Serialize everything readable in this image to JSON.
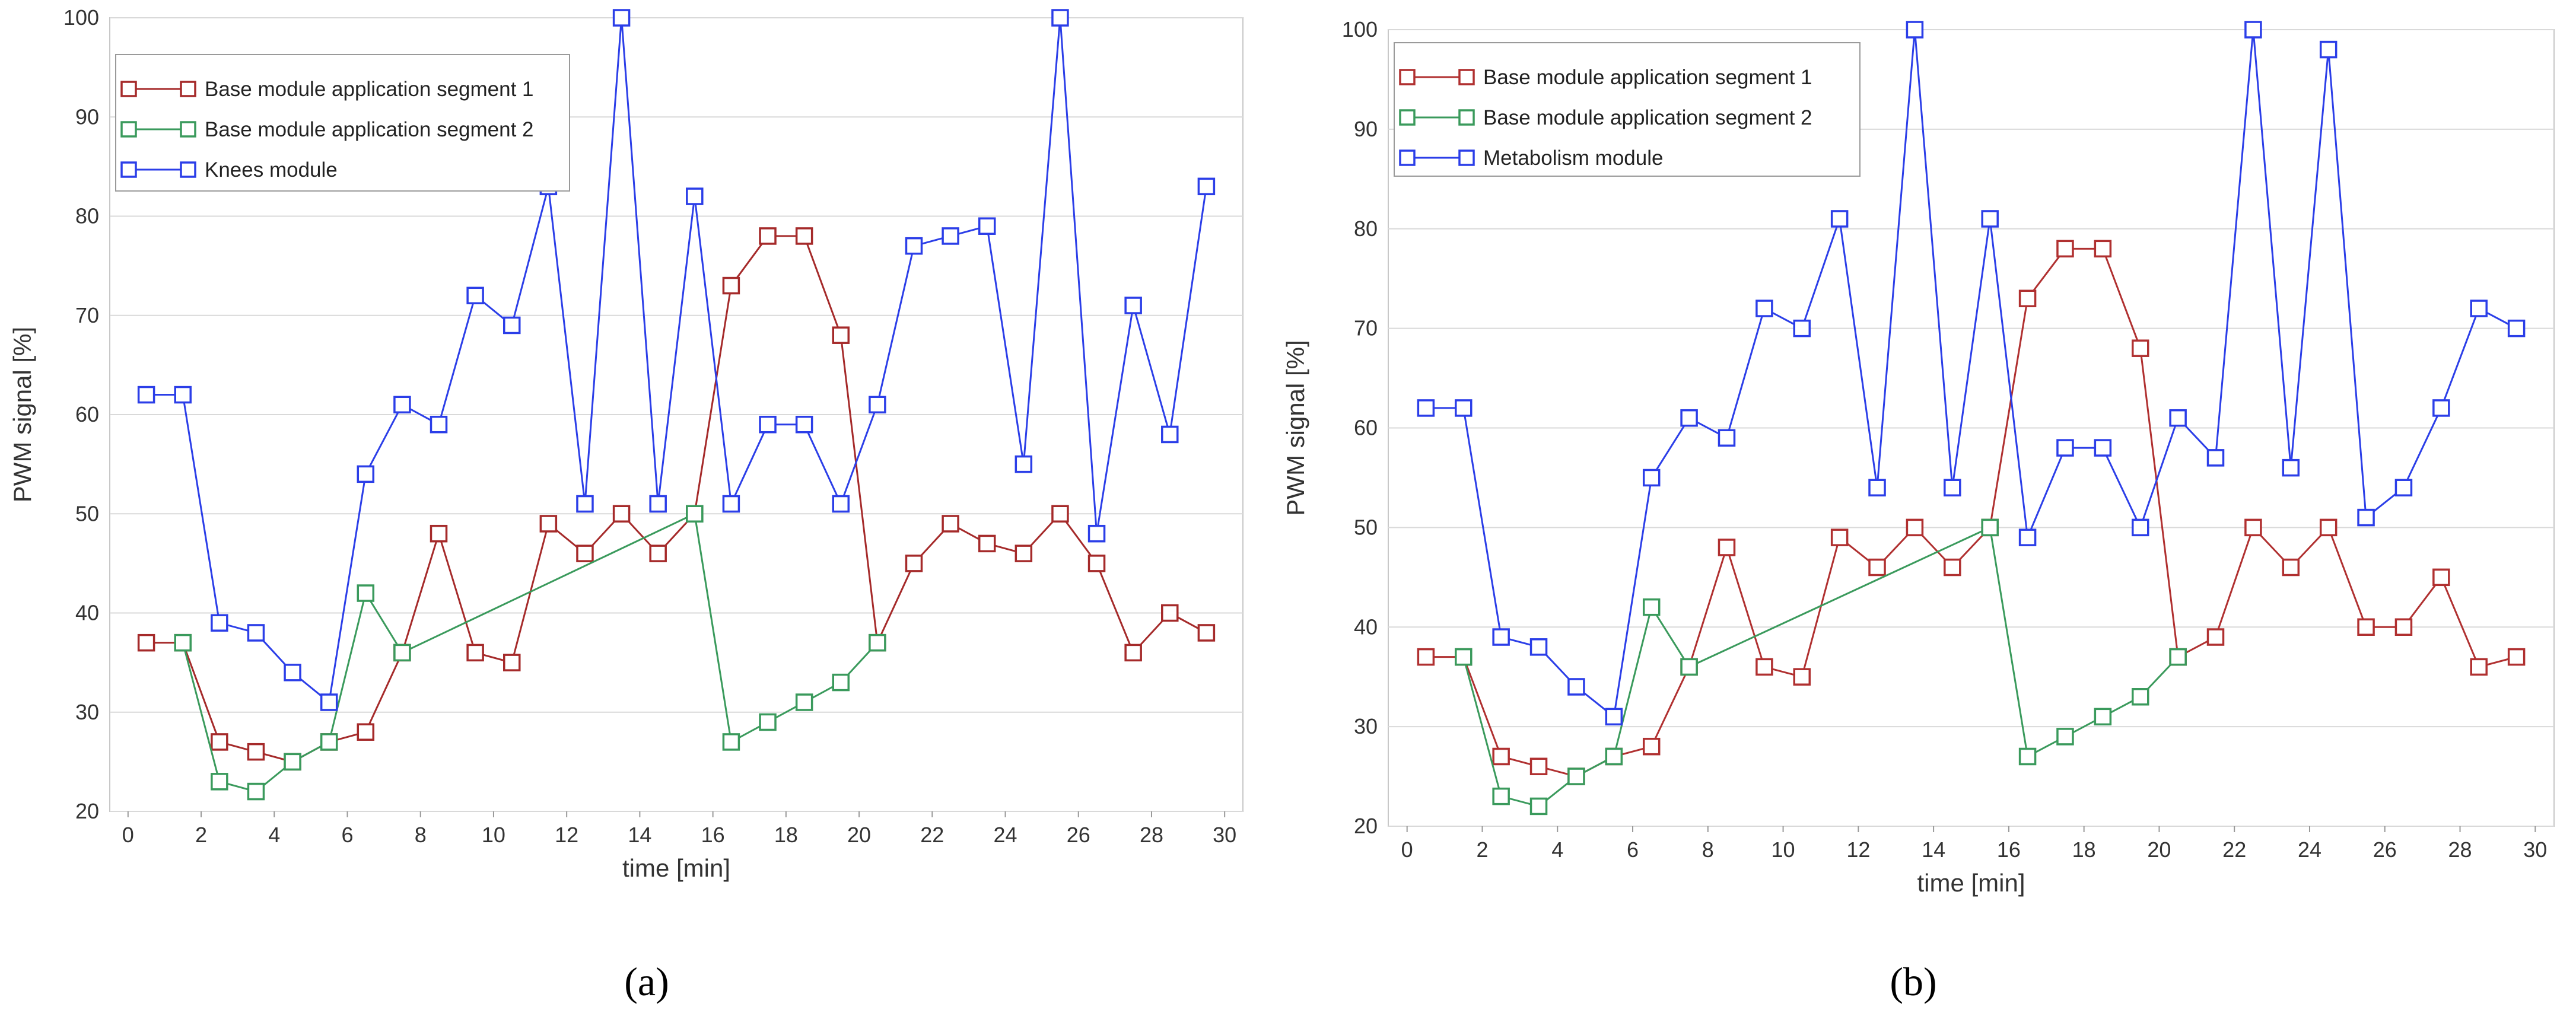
{
  "chart_data": [
    {
      "type": "line",
      "caption": "(a)",
      "xlabel": "time [min]",
      "ylabel": "PWM signal [%]",
      "xlim": [
        -0.5,
        30.5
      ],
      "ylim": [
        20,
        100
      ],
      "xticks": [
        "0",
        "2",
        "4",
        "6",
        "8",
        "10",
        "12",
        "14",
        "16",
        "18",
        "20",
        "22",
        "24",
        "26",
        "28",
        "30"
      ],
      "yticks": [
        "20",
        "30",
        "40",
        "50",
        "60",
        "70",
        "80",
        "90",
        "100"
      ],
      "grid": "horizontal",
      "legend_position": "top-left",
      "x": [
        0.5,
        1.5,
        2.5,
        3.5,
        4.5,
        5.5,
        6.5,
        7.5,
        8.5,
        9.5,
        10.5,
        11.5,
        12.5,
        13.5,
        14.5,
        15.5,
        16.5,
        17.5,
        18.5,
        19.5,
        20.5,
        21.5,
        22.5,
        23.5,
        24.5,
        25.5,
        26.5,
        27.5,
        28.5,
        29.5
      ],
      "series": [
        {
          "name": "Base module application segment 1",
          "color": "#a52a2a",
          "x": [
            0.5,
            1.5,
            2.5,
            3.5,
            4.5,
            5.5,
            6.5,
            7.5,
            8.5,
            9.5,
            10.5,
            11.5,
            12.5,
            13.5,
            14.5,
            15.5,
            16.5,
            17.5,
            18.5,
            19.5,
            20.5,
            21.5,
            22.5,
            23.5,
            24.5,
            25.5,
            26.5,
            27.5,
            28.5,
            29.5
          ],
          "values": [
            37,
            37,
            27,
            26,
            25,
            27,
            28,
            36,
            48,
            36,
            35,
            49,
            46,
            50,
            46,
            50,
            73,
            78,
            78,
            68,
            37,
            45,
            49,
            47,
            46,
            50,
            45,
            36,
            40,
            38
          ]
        },
        {
          "name": "Base module application segment 2",
          "color": "#3a9a5c",
          "x": [
            1.5,
            2.5,
            3.5,
            4.5,
            5.5,
            6.5,
            7.5,
            15.5,
            16.5,
            17.5,
            18.5,
            19.5,
            20.5
          ],
          "values": [
            37,
            23,
            22,
            25,
            27,
            42,
            36,
            50,
            27,
            29,
            31,
            33,
            37
          ]
        },
        {
          "name": "Knees module",
          "color": "#2b3ee8",
          "x": [
            0.5,
            1.5,
            2.5,
            3.5,
            4.5,
            5.5,
            6.5,
            7.5,
            8.5,
            9.5,
            10.5,
            11.5,
            12.5,
            13.5,
            14.5,
            15.5,
            16.5,
            17.5,
            18.5,
            19.5,
            20.5,
            21.5,
            22.5,
            23.5,
            24.5,
            25.5,
            26.5,
            27.5,
            28.5,
            29.5
          ],
          "values": [
            62,
            62,
            39,
            38,
            34,
            31,
            54,
            61,
            59,
            72,
            69,
            83,
            51,
            100,
            51,
            82,
            51,
            59,
            59,
            51,
            61,
            77,
            78,
            79,
            55,
            100,
            48,
            71,
            58,
            83
          ]
        }
      ]
    },
    {
      "type": "line",
      "caption": "(b)",
      "xlabel": "time [min]",
      "ylabel": "PWM signal [%]",
      "xlim": [
        -0.5,
        30.5
      ],
      "ylim": [
        20,
        100
      ],
      "xticks": [
        "0",
        "2",
        "4",
        "6",
        "8",
        "10",
        "12",
        "14",
        "16",
        "18",
        "20",
        "22",
        "24",
        "26",
        "28",
        "30"
      ],
      "yticks": [
        "20",
        "30",
        "40",
        "50",
        "60",
        "70",
        "80",
        "90",
        "100"
      ],
      "grid": "horizontal",
      "legend_position": "top-left",
      "series": [
        {
          "name": "Base module application segment 1",
          "color": "#b03030",
          "x": [
            0.5,
            1.5,
            2.5,
            3.5,
            4.5,
            5.5,
            6.5,
            7.5,
            8.5,
            9.5,
            10.5,
            11.5,
            12.5,
            13.5,
            14.5,
            15.5,
            16.5,
            17.5,
            18.5,
            19.5,
            20.5,
            21.5,
            22.5,
            23.5,
            24.5,
            25.5,
            26.5,
            27.5,
            28.5,
            29.5
          ],
          "values": [
            37,
            37,
            27,
            26,
            25,
            27,
            28,
            36,
            48,
            36,
            35,
            49,
            46,
            50,
            46,
            50,
            73,
            78,
            78,
            68,
            37,
            39,
            50,
            46,
            50,
            40,
            40,
            45,
            36,
            37
          ]
        },
        {
          "name": "Base module application segment 2",
          "color": "#3a9a5c",
          "x": [
            1.5,
            2.5,
            3.5,
            4.5,
            5.5,
            6.5,
            7.5,
            15.5,
            16.5,
            17.5,
            18.5,
            19.5,
            20.5
          ],
          "values": [
            37,
            23,
            22,
            25,
            27,
            42,
            36,
            50,
            27,
            29,
            31,
            33,
            37
          ]
        },
        {
          "name": "Metabolism module",
          "color": "#2b3ee8",
          "x": [
            0.5,
            1.5,
            2.5,
            3.5,
            4.5,
            5.5,
            6.5,
            7.5,
            8.5,
            9.5,
            10.5,
            11.5,
            12.5,
            13.5,
            14.5,
            15.5,
            16.5,
            17.5,
            18.5,
            19.5,
            20.5,
            21.5,
            22.5,
            23.5,
            24.5,
            25.5,
            26.5,
            27.5,
            28.5,
            29.5
          ],
          "values": [
            62,
            62,
            39,
            38,
            34,
            31,
            55,
            61,
            59,
            72,
            70,
            81,
            54,
            100,
            54,
            81,
            49,
            58,
            58,
            50,
            61,
            57,
            100,
            56,
            98,
            51,
            54,
            62,
            72,
            70
          ]
        }
      ]
    }
  ]
}
